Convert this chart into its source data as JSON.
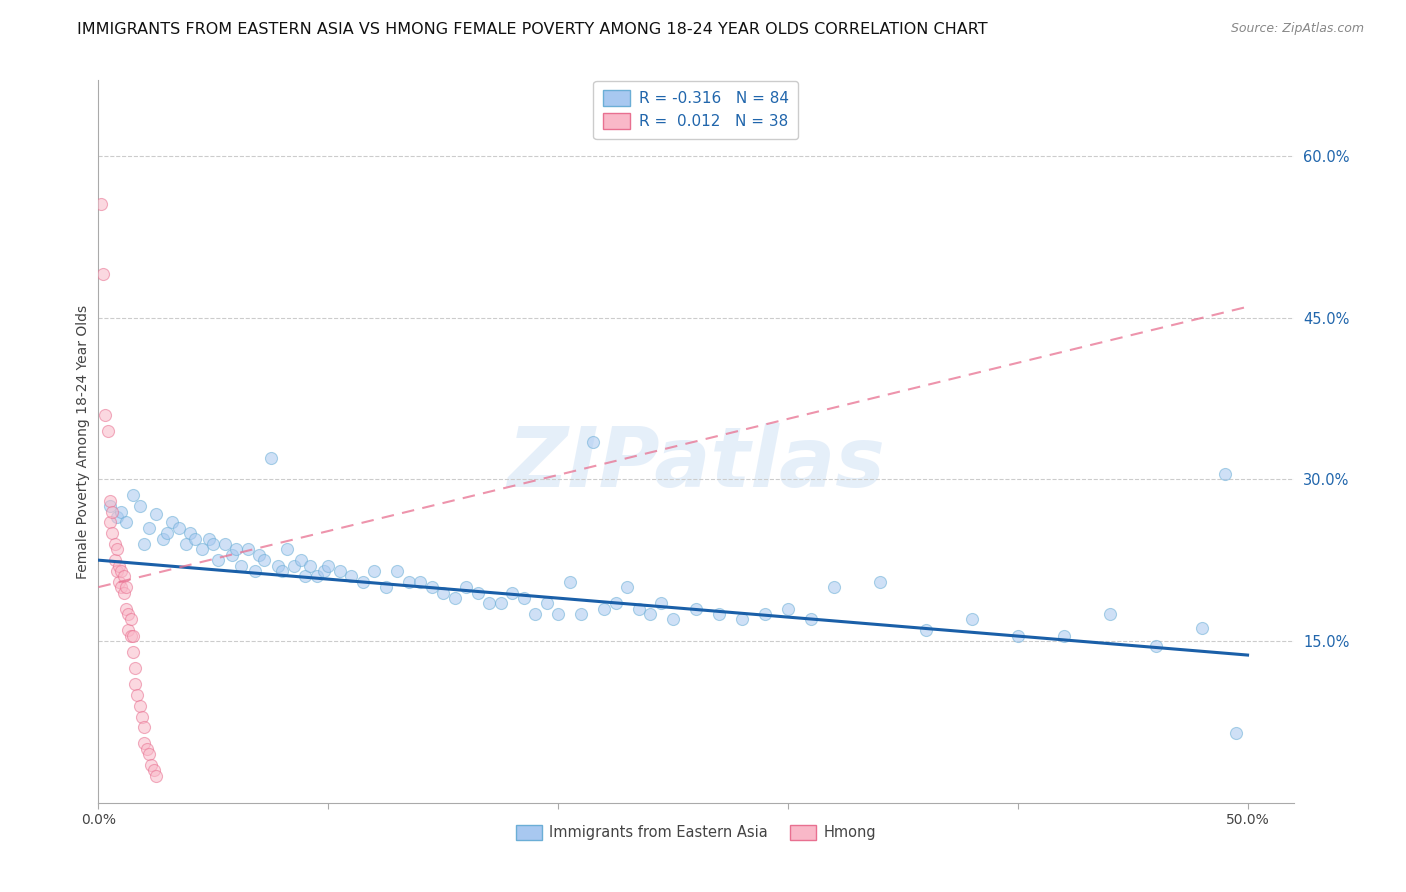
{
  "title": "IMMIGRANTS FROM EASTERN ASIA VS HMONG FEMALE POVERTY AMONG 18-24 YEAR OLDS CORRELATION CHART",
  "source": "Source: ZipAtlas.com",
  "ylabel": "Female Poverty Among 18-24 Year Olds",
  "xlim": [
    0.0,
    0.52
  ],
  "ylim": [
    0.0,
    0.67
  ],
  "xtick_positions": [
    0.0,
    0.1,
    0.2,
    0.3,
    0.4,
    0.5
  ],
  "xticklabels": [
    "0.0%",
    "",
    "",
    "",
    "",
    "50.0%"
  ],
  "ytick_right_labels": [
    "60.0%",
    "45.0%",
    "30.0%",
    "15.0%"
  ],
  "ytick_right_values": [
    0.6,
    0.45,
    0.3,
    0.15
  ],
  "watermark": "ZIPatlas",
  "legend_entries": [
    {
      "label": "Immigrants from Eastern Asia",
      "R": "-0.316",
      "N": "84",
      "face": "#a8c8f0",
      "edge": "#6baed6"
    },
    {
      "label": "Hmong",
      "R": "0.012",
      "N": "38",
      "face": "#f9b8c8",
      "edge": "#e87090"
    }
  ],
  "blue_scatter": [
    [
      0.005,
      0.275
    ],
    [
      0.008,
      0.265
    ],
    [
      0.01,
      0.27
    ],
    [
      0.012,
      0.26
    ],
    [
      0.015,
      0.285
    ],
    [
      0.018,
      0.275
    ],
    [
      0.02,
      0.24
    ],
    [
      0.022,
      0.255
    ],
    [
      0.025,
      0.268
    ],
    [
      0.028,
      0.245
    ],
    [
      0.03,
      0.25
    ],
    [
      0.032,
      0.26
    ],
    [
      0.035,
      0.255
    ],
    [
      0.038,
      0.24
    ],
    [
      0.04,
      0.25
    ],
    [
      0.042,
      0.245
    ],
    [
      0.045,
      0.235
    ],
    [
      0.048,
      0.245
    ],
    [
      0.05,
      0.24
    ],
    [
      0.052,
      0.225
    ],
    [
      0.055,
      0.24
    ],
    [
      0.058,
      0.23
    ],
    [
      0.06,
      0.235
    ],
    [
      0.062,
      0.22
    ],
    [
      0.065,
      0.235
    ],
    [
      0.068,
      0.215
    ],
    [
      0.07,
      0.23
    ],
    [
      0.072,
      0.225
    ],
    [
      0.075,
      0.32
    ],
    [
      0.078,
      0.22
    ],
    [
      0.08,
      0.215
    ],
    [
      0.082,
      0.235
    ],
    [
      0.085,
      0.22
    ],
    [
      0.088,
      0.225
    ],
    [
      0.09,
      0.21
    ],
    [
      0.092,
      0.22
    ],
    [
      0.095,
      0.21
    ],
    [
      0.098,
      0.215
    ],
    [
      0.1,
      0.22
    ],
    [
      0.105,
      0.215
    ],
    [
      0.11,
      0.21
    ],
    [
      0.115,
      0.205
    ],
    [
      0.12,
      0.215
    ],
    [
      0.125,
      0.2
    ],
    [
      0.13,
      0.215
    ],
    [
      0.135,
      0.205
    ],
    [
      0.14,
      0.205
    ],
    [
      0.145,
      0.2
    ],
    [
      0.15,
      0.195
    ],
    [
      0.155,
      0.19
    ],
    [
      0.16,
      0.2
    ],
    [
      0.165,
      0.195
    ],
    [
      0.17,
      0.185
    ],
    [
      0.175,
      0.185
    ],
    [
      0.18,
      0.195
    ],
    [
      0.185,
      0.19
    ],
    [
      0.19,
      0.175
    ],
    [
      0.195,
      0.185
    ],
    [
      0.2,
      0.175
    ],
    [
      0.205,
      0.205
    ],
    [
      0.21,
      0.175
    ],
    [
      0.215,
      0.335
    ],
    [
      0.22,
      0.18
    ],
    [
      0.225,
      0.185
    ],
    [
      0.23,
      0.2
    ],
    [
      0.235,
      0.18
    ],
    [
      0.24,
      0.175
    ],
    [
      0.245,
      0.185
    ],
    [
      0.25,
      0.17
    ],
    [
      0.26,
      0.18
    ],
    [
      0.27,
      0.175
    ],
    [
      0.28,
      0.17
    ],
    [
      0.29,
      0.175
    ],
    [
      0.3,
      0.18
    ],
    [
      0.31,
      0.17
    ],
    [
      0.32,
      0.2
    ],
    [
      0.34,
      0.205
    ],
    [
      0.36,
      0.16
    ],
    [
      0.38,
      0.17
    ],
    [
      0.4,
      0.155
    ],
    [
      0.42,
      0.155
    ],
    [
      0.44,
      0.175
    ],
    [
      0.46,
      0.145
    ],
    [
      0.48,
      0.162
    ],
    [
      0.49,
      0.305
    ],
    [
      0.495,
      0.065
    ]
  ],
  "pink_scatter": [
    [
      0.001,
      0.555
    ],
    [
      0.002,
      0.49
    ],
    [
      0.003,
      0.36
    ],
    [
      0.004,
      0.345
    ],
    [
      0.005,
      0.28
    ],
    [
      0.005,
      0.26
    ],
    [
      0.006,
      0.27
    ],
    [
      0.006,
      0.25
    ],
    [
      0.007,
      0.24
    ],
    [
      0.007,
      0.225
    ],
    [
      0.008,
      0.235
    ],
    [
      0.008,
      0.215
    ],
    [
      0.009,
      0.22
    ],
    [
      0.009,
      0.205
    ],
    [
      0.01,
      0.215
    ],
    [
      0.01,
      0.2
    ],
    [
      0.011,
      0.21
    ],
    [
      0.011,
      0.195
    ],
    [
      0.012,
      0.2
    ],
    [
      0.012,
      0.18
    ],
    [
      0.013,
      0.175
    ],
    [
      0.013,
      0.16
    ],
    [
      0.014,
      0.17
    ],
    [
      0.014,
      0.155
    ],
    [
      0.015,
      0.155
    ],
    [
      0.015,
      0.14
    ],
    [
      0.016,
      0.125
    ],
    [
      0.016,
      0.11
    ],
    [
      0.017,
      0.1
    ],
    [
      0.018,
      0.09
    ],
    [
      0.019,
      0.08
    ],
    [
      0.02,
      0.07
    ],
    [
      0.02,
      0.055
    ],
    [
      0.021,
      0.05
    ],
    [
      0.022,
      0.045
    ],
    [
      0.023,
      0.035
    ],
    [
      0.024,
      0.03
    ],
    [
      0.025,
      0.025
    ]
  ],
  "blue_line": {
    "x": [
      0.0,
      0.5
    ],
    "y": [
      0.225,
      0.137
    ]
  },
  "pink_line": {
    "x": [
      0.0,
      0.5
    ],
    "y": [
      0.2,
      0.46
    ]
  },
  "scatter_size": 75,
  "scatter_alpha": 0.55,
  "grid_color": "#cccccc",
  "title_fontsize": 11.5,
  "blue_line_color": "#1a5fa8",
  "pink_line_color": "#e87090"
}
